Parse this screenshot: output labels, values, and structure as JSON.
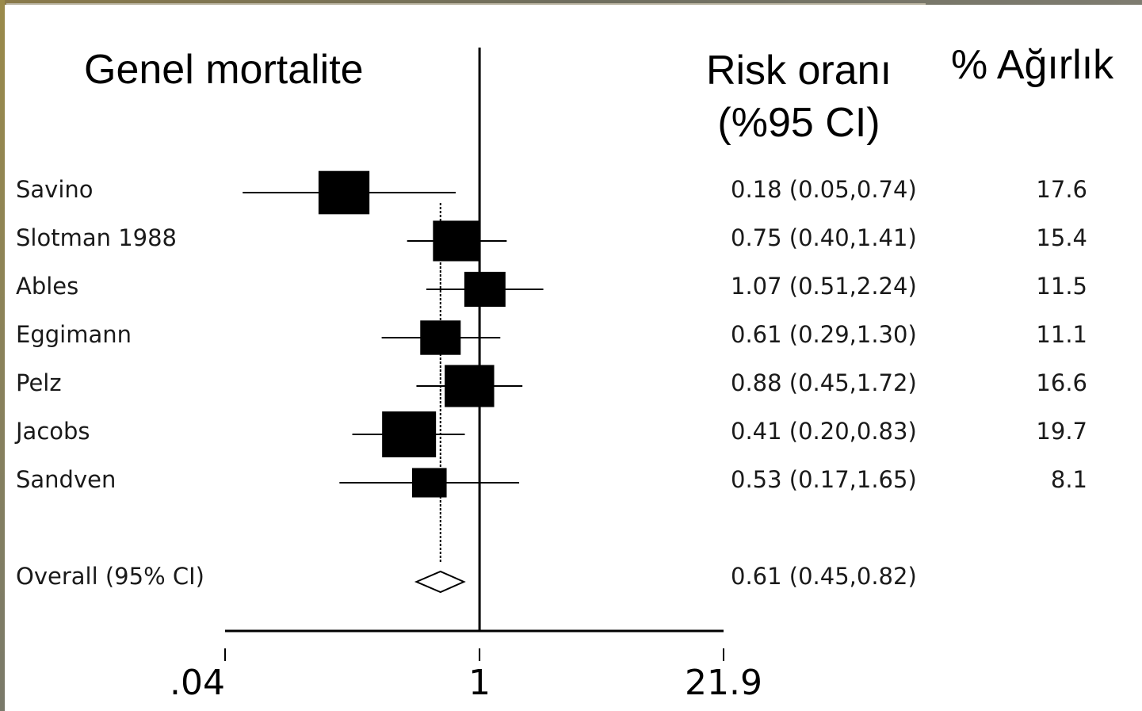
{
  "chart_data": {
    "type": "forest",
    "title": "Genel mortalite",
    "columns": {
      "ratio_line1": "Risk oranı",
      "ratio_line2": "(%95 CI)",
      "weight": "% Ağırlık"
    },
    "scale": "log",
    "xlim": [
      0.04,
      21.9
    ],
    "xticks": [
      {
        "value": 0.04,
        "label": ".04"
      },
      {
        "value": 1,
        "label": "1"
      },
      {
        "value": 21.9,
        "label": "21.9"
      }
    ],
    "reference_line": 1,
    "studies": [
      {
        "name": "Savino",
        "est": 0.18,
        "lo": 0.05,
        "hi": 0.74,
        "ci_text": "0.18 (0.05,0.74)",
        "weight": 17.6,
        "weight_text": "17.6"
      },
      {
        "name": "Slotman 1988",
        "est": 0.75,
        "lo": 0.4,
        "hi": 1.41,
        "ci_text": "0.75 (0.40,1.41)",
        "weight": 15.4,
        "weight_text": "15.4"
      },
      {
        "name": "Ables",
        "est": 1.07,
        "lo": 0.51,
        "hi": 2.24,
        "ci_text": "1.07 (0.51,2.24)",
        "weight": 11.5,
        "weight_text": "11.5"
      },
      {
        "name": "Eggimann",
        "est": 0.61,
        "lo": 0.29,
        "hi": 1.3,
        "ci_text": "0.61 (0.29,1.30)",
        "weight": 11.1,
        "weight_text": "11.1"
      },
      {
        "name": "Pelz",
        "est": 0.88,
        "lo": 0.45,
        "hi": 1.72,
        "ci_text": "0.88 (0.45,1.72)",
        "weight": 16.6,
        "weight_text": "16.6"
      },
      {
        "name": "Jacobs",
        "est": 0.41,
        "lo": 0.2,
        "hi": 0.83,
        "ci_text": "0.41 (0.20,0.83)",
        "weight": 19.7,
        "weight_text": "19.7"
      },
      {
        "name": "Sandven",
        "est": 0.53,
        "lo": 0.17,
        "hi": 1.65,
        "ci_text": "0.53 (0.17,1.65)",
        "weight": 8.1,
        "weight_text": "8.1"
      }
    ],
    "overall": {
      "name": "Overall (95% CI)",
      "est": 0.61,
      "lo": 0.45,
      "hi": 0.82,
      "ci_text": "0.61 (0.45,0.82)"
    }
  }
}
